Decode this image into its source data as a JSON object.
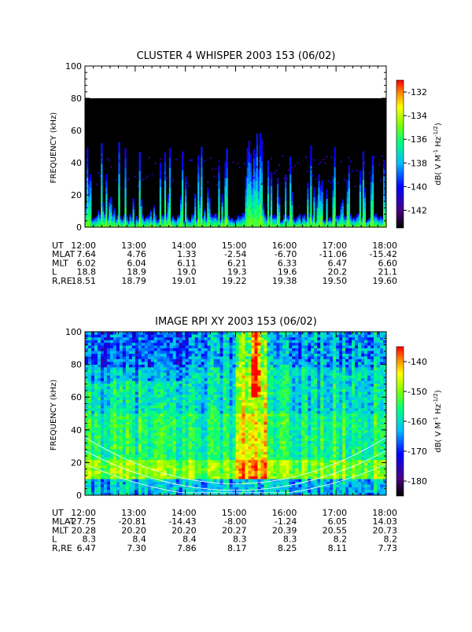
{
  "chart_data": [
    {
      "type": "heatmap",
      "title": "CLUSTER 4 WHISPER 2003 153 (06/02)",
      "ylabel": "FREQUENCY (kHz)",
      "ylim": [
        0,
        100
      ],
      "yticks": [
        "0",
        "20",
        "40",
        "60",
        "80",
        "100"
      ],
      "data_max_frequency_khz": 80,
      "colorbar": {
        "label_html": "dB( V M<tspan dy='-4' font-size='7'>-1</tspan><tspan dy='4'> Hz</tspan><tspan dy='-4' font-size='7'>-1/2</tspan><tspan dy='4'>)</tspan>",
        "ticks": [
          "-132",
          "-134",
          "-136",
          "-138",
          "-140",
          "-142"
        ],
        "range": [
          -143.5,
          -131
        ]
      },
      "ephemeris": {
        "labels": [
          "UT",
          "MLAT",
          "MLT",
          "L",
          "R,RE"
        ],
        "columns": [
          [
            "12:00",
            "7.64",
            "6.02",
            "18.8",
            "18.51"
          ],
          [
            "13:00",
            "4.76",
            "6.04",
            "18.9",
            "18.79"
          ],
          [
            "14:00",
            "1.33",
            "6.11",
            "19.0",
            "19.01"
          ],
          [
            "15:00",
            "-2.54",
            "6.21",
            "19.3",
            "19.22"
          ],
          [
            "16:00",
            "-6.70",
            "6.33",
            "19.6",
            "19.38"
          ],
          [
            "17:00",
            "-11.06",
            "6.47",
            "20.2",
            "19.50"
          ],
          [
            "18:00",
            "-15.42",
            "6.60",
            "21.1",
            "19.60"
          ]
        ]
      }
    },
    {
      "type": "heatmap",
      "title": "IMAGE RPI XY 2003 153 (06/02)",
      "ylabel": "FREQUENCY (kHz)",
      "ylim": [
        0,
        100
      ],
      "yticks": [
        "0",
        "20",
        "40",
        "60",
        "80",
        "100"
      ],
      "colorbar": {
        "label_html": "dB( V M<tspan dy='-4' font-size='7'>-1</tspan><tspan dy='4'> Hz</tspan><tspan dy='-4' font-size='7'>-1/2</tspan><tspan dy='4'>)</tspan>",
        "ticks": [
          "-140",
          "-150",
          "-160",
          "-170",
          "-180"
        ],
        "range": [
          -185,
          -135
        ]
      },
      "ephemeris": {
        "labels": [
          "UT",
          "MLAT",
          "MLT",
          "L",
          "R,RE"
        ],
        "columns": [
          [
            "12:00",
            "-27.75",
            "20.28",
            "8.3",
            "6.47"
          ],
          [
            "13:00",
            "-20.81",
            "20.20",
            "8.4",
            "7.30"
          ],
          [
            "14:00",
            "-14.43",
            "20.20",
            "8.4",
            "7.86"
          ],
          [
            "15:00",
            "-8.00",
            "20.27",
            "8.3",
            "8.17"
          ],
          [
            "16:00",
            "-1.24",
            "20.39",
            "8.3",
            "8.25"
          ],
          [
            "17:00",
            "6.05",
            "20.55",
            "8.2",
            "8.11"
          ],
          [
            "18:00",
            "14.03",
            "20.73",
            "8.2",
            "7.73"
          ]
        ]
      }
    }
  ]
}
